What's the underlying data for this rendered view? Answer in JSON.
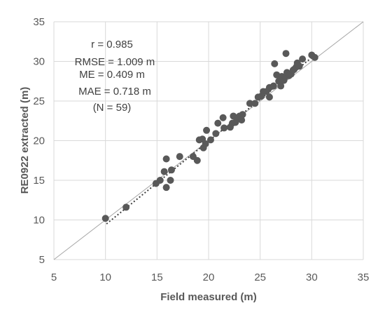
{
  "chart_data": {
    "type": "scatter",
    "title": "",
    "xlabel": "Field measured (m)",
    "ylabel": "RE0922 extracted (m)",
    "xlim": [
      5,
      35
    ],
    "ylim": [
      5,
      35
    ],
    "x_ticks": [
      "5",
      "10",
      "15",
      "20",
      "25",
      "30",
      "35"
    ],
    "y_ticks": [
      "5",
      "10",
      "15",
      "20",
      "25",
      "30",
      "35"
    ],
    "grid": true,
    "one_to_one_line": true,
    "trendline": {
      "style": "dotted",
      "from": [
        10.1,
        9.5
      ],
      "to": [
        30.3,
        30.8
      ]
    },
    "marker_color": "#595959",
    "stats": [
      "r = 0.985",
      "RMSE = 1.009 m",
      "ME = 0.409 m",
      "MAE = 0.718 m",
      "(N = 59)"
    ],
    "points": [
      [
        10.0,
        10.2
      ],
      [
        12.0,
        11.6
      ],
      [
        14.9,
        14.6
      ],
      [
        15.3,
        15.0
      ],
      [
        15.7,
        16.1
      ],
      [
        15.9,
        14.1
      ],
      [
        15.9,
        17.7
      ],
      [
        16.3,
        15.0
      ],
      [
        16.4,
        16.3
      ],
      [
        17.2,
        18.0
      ],
      [
        18.5,
        18.0
      ],
      [
        18.9,
        17.5
      ],
      [
        19.1,
        20.1
      ],
      [
        19.4,
        20.2
      ],
      [
        19.5,
        19.1
      ],
      [
        19.7,
        19.6
      ],
      [
        19.8,
        21.3
      ],
      [
        20.2,
        20.1
      ],
      [
        20.7,
        20.9
      ],
      [
        20.9,
        22.2
      ],
      [
        21.4,
        22.9
      ],
      [
        21.5,
        21.6
      ],
      [
        22.1,
        21.7
      ],
      [
        22.3,
        22.2
      ],
      [
        22.4,
        23.1
      ],
      [
        22.8,
        22.9
      ],
      [
        23.2,
        22.6
      ],
      [
        23.3,
        23.3
      ],
      [
        24.0,
        24.7
      ],
      [
        24.5,
        24.7
      ],
      [
        24.8,
        25.5
      ],
      [
        25.3,
        26.2
      ],
      [
        25.6,
        26.2
      ],
      [
        25.9,
        25.5
      ],
      [
        25.9,
        26.7
      ],
      [
        26.3,
        26.9
      ],
      [
        26.4,
        29.7
      ],
      [
        26.6,
        28.3
      ],
      [
        26.8,
        27.5
      ],
      [
        27.0,
        26.9
      ],
      [
        27.1,
        28.1
      ],
      [
        27.3,
        27.6
      ],
      [
        27.4,
        28.0
      ],
      [
        27.5,
        31.0
      ],
      [
        27.6,
        28.6
      ],
      [
        27.8,
        28.2
      ],
      [
        28.0,
        28.4
      ],
      [
        28.3,
        29.0
      ],
      [
        28.5,
        29.3
      ],
      [
        28.6,
        29.8
      ],
      [
        28.8,
        29.4
      ],
      [
        29.1,
        30.3
      ],
      [
        30.0,
        30.8
      ],
      [
        30.3,
        30.5
      ],
      [
        22.6,
        22.3
      ],
      [
        23.0,
        23.1
      ],
      [
        25.1,
        25.6
      ],
      [
        26.9,
        27.6
      ],
      [
        28.2,
        28.9
      ]
    ]
  }
}
